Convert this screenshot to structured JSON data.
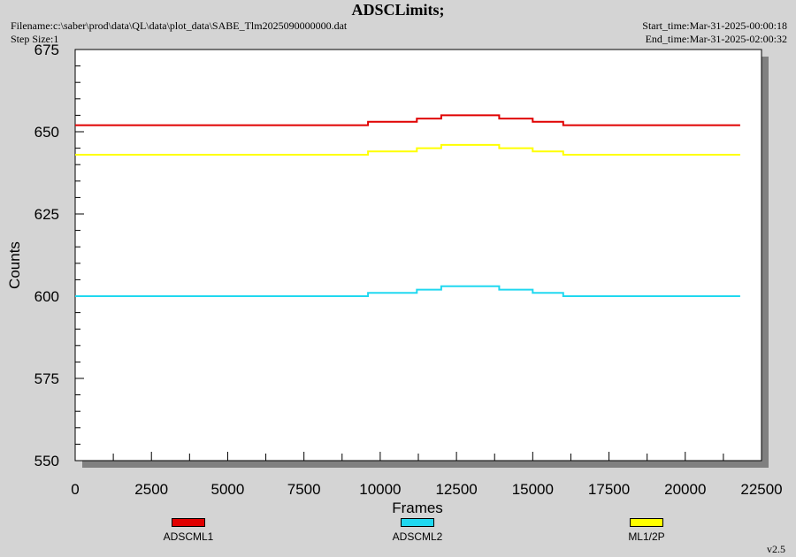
{
  "header": {
    "title": "ADSCLimits;",
    "filename": "Filename:c:\\saber\\prod\\data\\QL\\data\\plot_data\\SABE_Tlm2025090000000.dat",
    "step_size": "Step Size:1",
    "start_time": "Start_time:Mar-31-2025-00:00:18",
    "end_time": "End_time:Mar-31-2025-02:00:32"
  },
  "footer": {
    "version": "v2.5"
  },
  "chart_data": {
    "type": "line",
    "title": "ADSCLimits;",
    "xlabel": "Frames",
    "ylabel": "Counts",
    "xlim": [
      0,
      22500
    ],
    "ylim": [
      550,
      675
    ],
    "xticks": [
      0,
      2500,
      5000,
      7500,
      10000,
      12500,
      15000,
      17500,
      20000,
      22500
    ],
    "xtick_labels": [
      "0",
      "2500",
      "5000",
      "7500",
      "10000",
      "12500",
      "15000",
      "17500",
      "20000",
      "22500"
    ],
    "yticks": [
      550,
      575,
      600,
      625,
      650,
      675
    ],
    "ytick_labels": [
      "550",
      "575",
      "600",
      "625",
      "650",
      "675"
    ],
    "grid": false,
    "legend_position": "bottom",
    "series": [
      {
        "name": "ADSCML1",
        "color": "#e00000",
        "x": [
          0,
          9600,
          9600,
          11200,
          11200,
          12000,
          12000,
          13900,
          13900,
          15000,
          15000,
          16000,
          16000,
          21800
        ],
        "y": [
          652,
          652,
          653,
          653,
          654,
          654,
          655,
          655,
          654,
          654,
          653,
          653,
          652,
          652
        ]
      },
      {
        "name": "ADSCML2",
        "color": "#20d8f0",
        "x": [
          0,
          9600,
          9600,
          11200,
          11200,
          12000,
          12000,
          13900,
          13900,
          15000,
          15000,
          16000,
          16000,
          21800
        ],
        "y": [
          600,
          600,
          601,
          601,
          602,
          602,
          603,
          603,
          602,
          602,
          601,
          601,
          600,
          600
        ]
      },
      {
        "name": "ML1/2P",
        "color": "#ffff00",
        "x": [
          0,
          9600,
          9600,
          11200,
          11200,
          12000,
          12000,
          13900,
          13900,
          15000,
          15000,
          16000,
          16000,
          21800
        ],
        "y": [
          643,
          643,
          644,
          644,
          645,
          645,
          646,
          646,
          645,
          645,
          644,
          644,
          643,
          643
        ]
      }
    ]
  }
}
